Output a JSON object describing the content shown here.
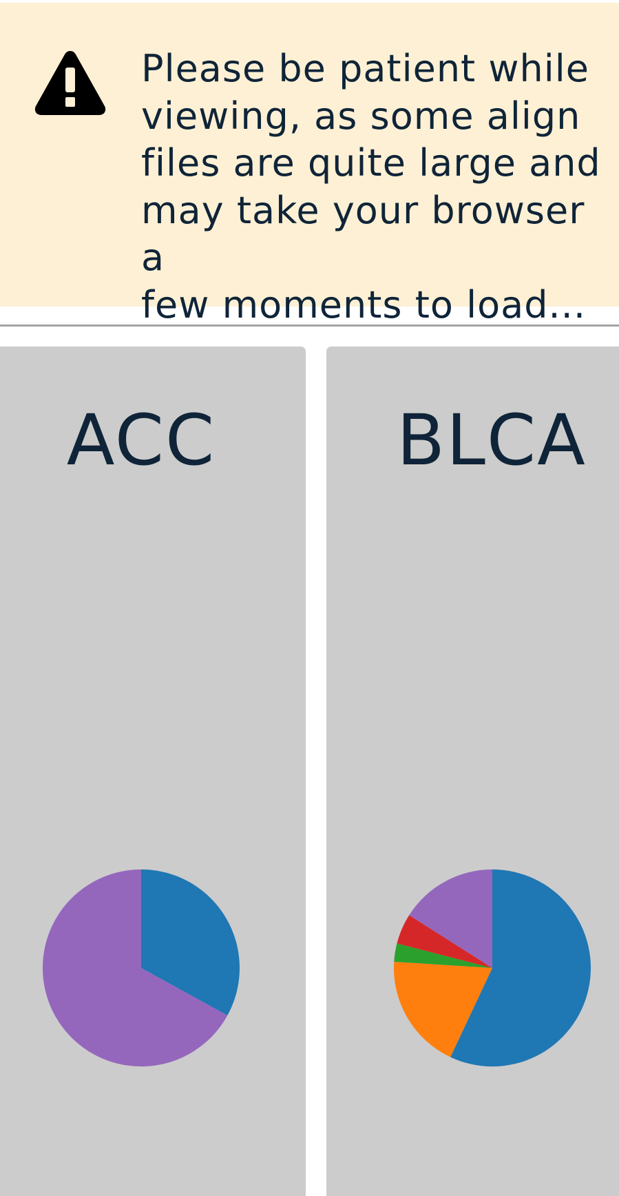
{
  "notice": {
    "icon": "warning-triangle-icon",
    "text": "Please be patient while\nviewing, as some align\nfiles are quite large and\nmay take your browser a\nfew moments to load..."
  },
  "cards": [
    {
      "title": "ACC"
    },
    {
      "title": "BLCA"
    }
  ],
  "chart_data": [
    {
      "type": "pie",
      "values": [
        33,
        67
      ],
      "colors": [
        "#1f77b4",
        "#9467bd"
      ]
    },
    {
      "type": "pie",
      "values": [
        57,
        19,
        3,
        5,
        16
      ],
      "colors": [
        "#1f77b4",
        "#ff7f0e",
        "#2ca02c",
        "#d62728",
        "#9467bd"
      ]
    }
  ]
}
